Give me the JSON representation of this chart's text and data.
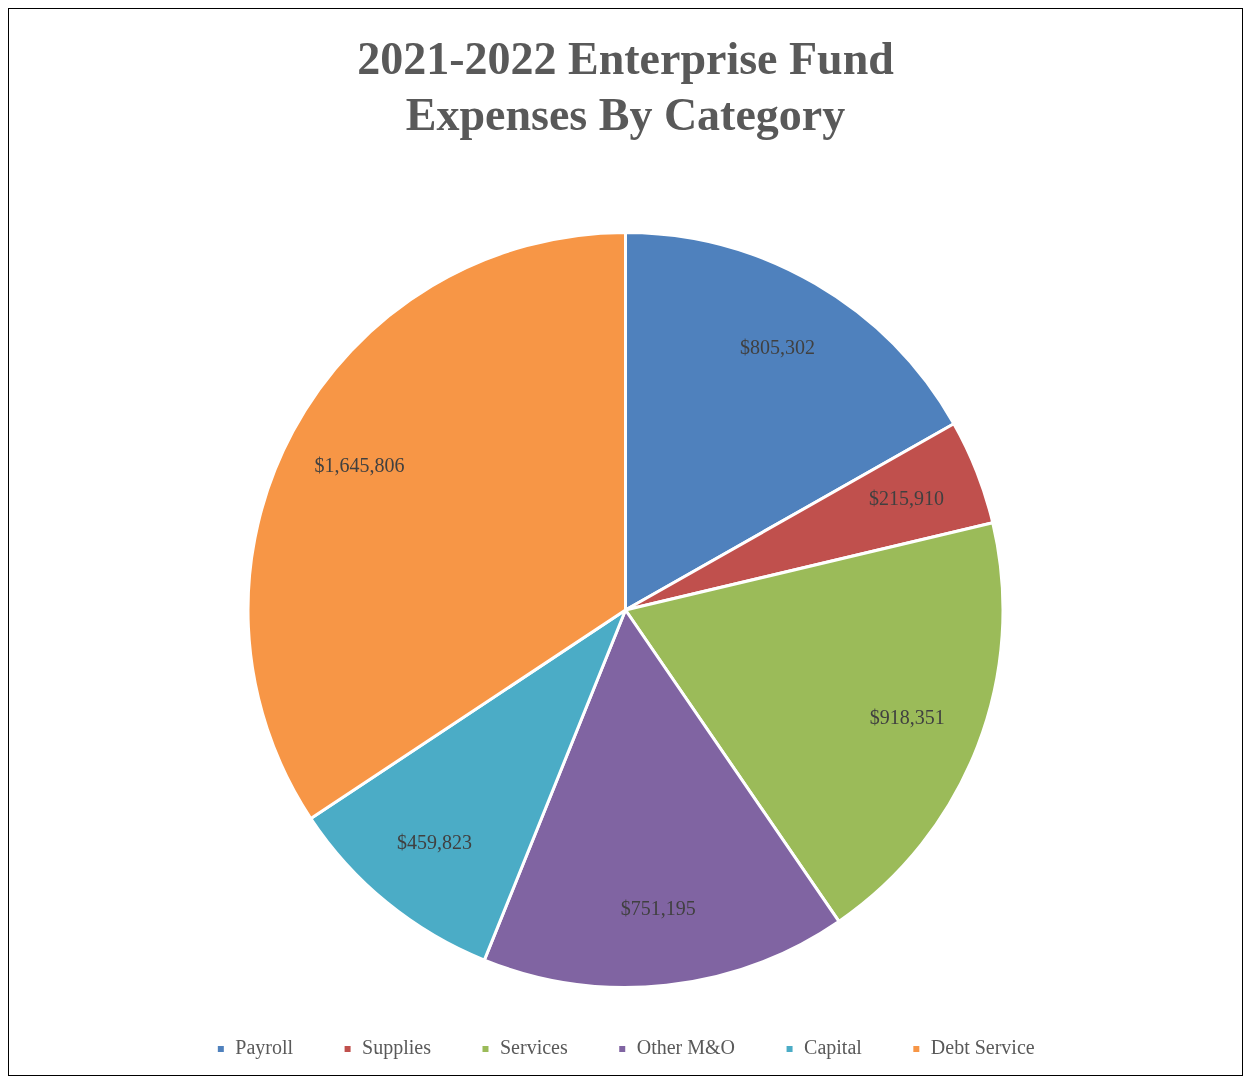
{
  "chart_data": {
    "type": "pie",
    "title": "2021-2022 Enterprise Fund Expenses By Category",
    "categories": [
      "Payroll",
      "Supplies",
      "Services",
      "Other M&O",
      "Capital",
      "Debt Service"
    ],
    "values": [
      805302,
      215910,
      918351,
      751195,
      459823,
      1645806
    ],
    "value_labels": [
      "$805,302",
      "$215,910",
      "$918,351",
      "$751,195",
      "$459,823",
      "$1,645,806"
    ],
    "colors": [
      "#4f81bd",
      "#c0504d",
      "#9bbb59",
      "#8064a2",
      "#4bacc6",
      "#f79646"
    ],
    "legend": "bottom"
  }
}
